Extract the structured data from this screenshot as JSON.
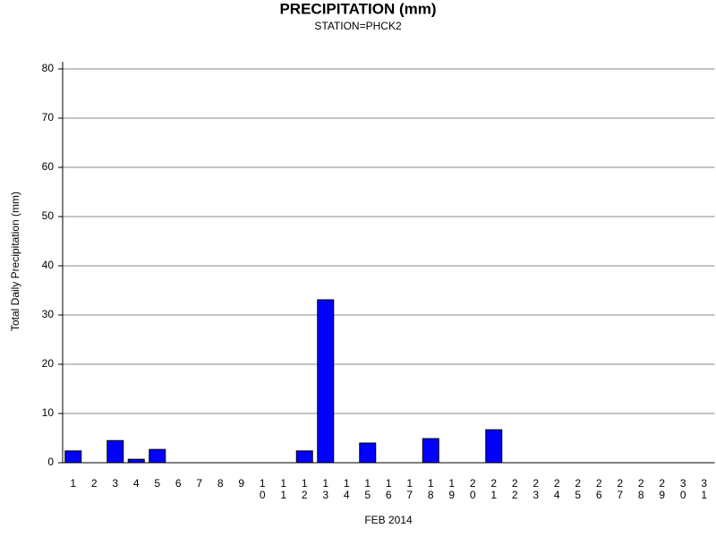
{
  "chart_data": {
    "type": "bar",
    "title": "PRECIPITATION (mm)",
    "subtitle": "STATION=PHCK2",
    "x_label": "FEB 2014",
    "y_label": "Total Daily Precipitation (mm)",
    "categories": [
      "1",
      "2",
      "3",
      "4",
      "5",
      "6",
      "7",
      "8",
      "9",
      "10",
      "11",
      "12",
      "13",
      "14",
      "15",
      "16",
      "17",
      "18",
      "19",
      "20",
      "21",
      "22",
      "23",
      "24",
      "25",
      "26",
      "27",
      "28",
      "29",
      "30",
      "31"
    ],
    "values": [
      2.4,
      0,
      4.5,
      0.7,
      2.7,
      0,
      0,
      0,
      0,
      0,
      0,
      2.4,
      33.1,
      0,
      4.0,
      0,
      0,
      4.9,
      0,
      0,
      6.7,
      0,
      0,
      0,
      0,
      0,
      0,
      0,
      null,
      null,
      null
    ],
    "color": "#0000ff",
    "ylim": [
      0,
      80
    ],
    "yticks": [
      0,
      10,
      20,
      30,
      40,
      50,
      60,
      70,
      80
    ],
    "grid": true
  }
}
